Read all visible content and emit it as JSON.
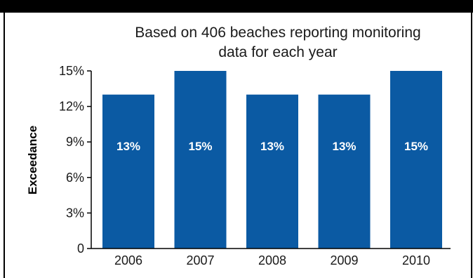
{
  "colors": {
    "bar": "#0b5aa3",
    "band": "#000000",
    "axis": "#000000",
    "text": "#1a1a1a",
    "bar_label": "#ffffff"
  },
  "chart_data": {
    "type": "bar",
    "title_lines": [
      "Based on 406 beaches reporting monitoring",
      "data for each year"
    ],
    "xlabel": "",
    "ylabel": "Exceedance",
    "categories": [
      "2006",
      "2007",
      "2008",
      "2009",
      "2010"
    ],
    "values": [
      13,
      15,
      13,
      13,
      15
    ],
    "data_labels": [
      "13%",
      "15%",
      "13%",
      "13%",
      "15%"
    ],
    "ylim": [
      0,
      15
    ],
    "yticks": [
      0,
      3,
      6,
      9,
      12,
      15
    ],
    "ytick_labels": [
      "0",
      "3%",
      "6%",
      "9%",
      "12%",
      "15%"
    ],
    "grid": false,
    "legend": "none"
  }
}
